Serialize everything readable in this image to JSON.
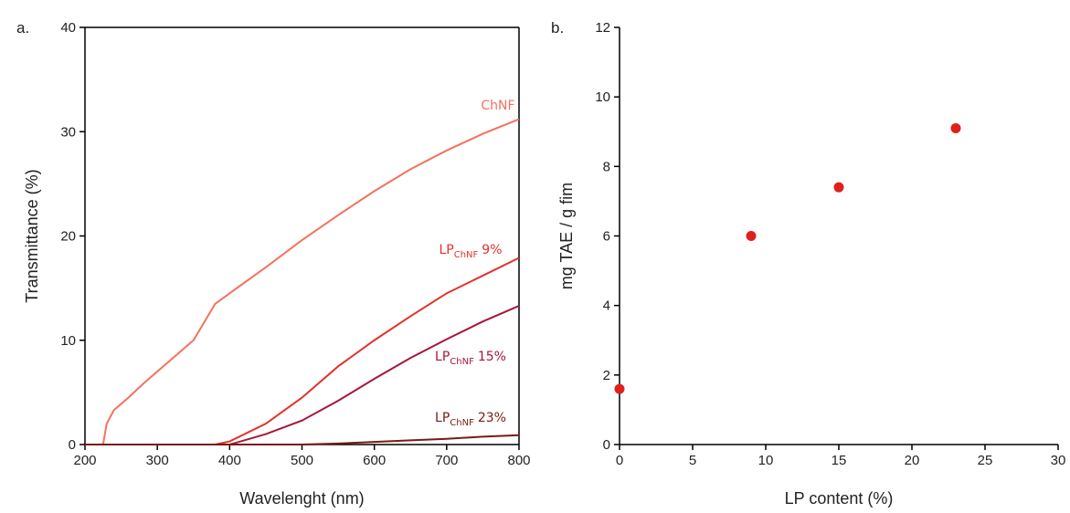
{
  "chart_data": [
    {
      "type": "line",
      "panel_label": "a.",
      "xlabel": "Wavelenght (nm)",
      "ylabel": "Transmittance (%)",
      "x": [
        200,
        225,
        230,
        240,
        260,
        280,
        300,
        350,
        380,
        400,
        450,
        500,
        550,
        600,
        650,
        700,
        750,
        800
      ],
      "series": [
        {
          "name": "ChNF",
          "color": "#f4715e",
          "values": [
            0,
            0,
            2,
            3.3,
            4.5,
            5.8,
            7,
            10,
            13.5,
            14.5,
            17,
            19.6,
            22,
            24.3,
            26.4,
            28.2,
            29.8,
            31.2
          ]
        },
        {
          "name": "LP",
          "name_sub": "ChNF",
          "name_suffix": "9%",
          "color": "#e3312b",
          "values": [
            0,
            0,
            0,
            0,
            0,
            0,
            0,
            0,
            0,
            0.3,
            2,
            4.5,
            7.5,
            10,
            12.3,
            14.5,
            16.2,
            17.9
          ]
        },
        {
          "name": "LP",
          "name_sub": "ChNF",
          "name_suffix": "15%",
          "color": "#a8163a",
          "values": [
            0,
            0,
            0,
            0,
            0,
            0,
            0,
            0,
            0,
            0,
            1,
            2.3,
            4.2,
            6.3,
            8.3,
            10.1,
            11.8,
            13.3
          ]
        },
        {
          "name": "LP",
          "name_sub": "ChNF",
          "name_suffix": "23%",
          "color": "#7a1a12",
          "values": [
            0,
            0,
            0,
            0,
            0,
            0,
            0,
            0,
            0,
            0,
            0,
            0,
            0.1,
            0.25,
            0.4,
            0.55,
            0.75,
            0.9
          ]
        }
      ],
      "xlim": [
        200,
        800
      ],
      "xticks": [
        200,
        300,
        400,
        500,
        600,
        700,
        800
      ],
      "ylim": [
        0,
        40
      ],
      "yticks": [
        0,
        10,
        20,
        30,
        40
      ],
      "frame": true
    },
    {
      "type": "scatter",
      "panel_label": "b.",
      "xlabel": "LP content (%)",
      "ylabel": "mg TAE / g fim",
      "x": [
        0,
        9,
        15,
        23
      ],
      "values": [
        1.6,
        6,
        7.4,
        9.1
      ],
      "color": "#e0201a",
      "xlim": [
        0,
        30
      ],
      "xticks": [
        0,
        5,
        10,
        15,
        20,
        25,
        30
      ],
      "ylim": [
        0,
        12
      ],
      "yticks": [
        0,
        2,
        4,
        6,
        8,
        10,
        12
      ],
      "frame": false
    }
  ]
}
